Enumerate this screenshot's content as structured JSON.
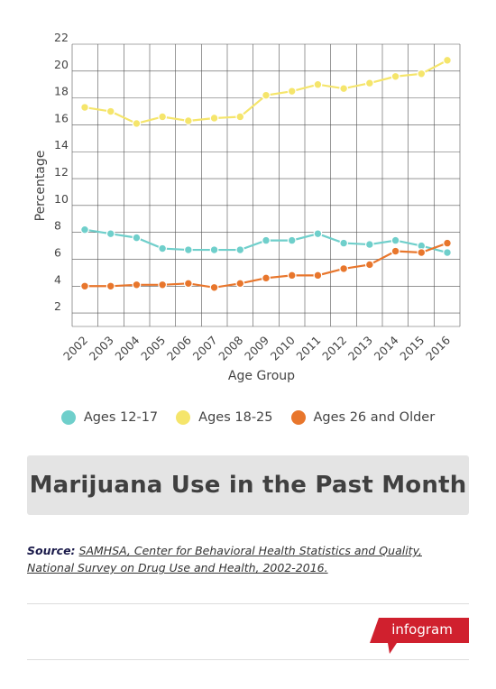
{
  "chart_data": {
    "type": "line",
    "title": "Marijuana Use in the Past Month",
    "xlabel": "Age Group",
    "ylabel": "Percentage",
    "categories": [
      "2002",
      "2003",
      "2004",
      "2005",
      "2006",
      "2007",
      "2008",
      "2009",
      "2010",
      "2011",
      "2012",
      "2013",
      "2014",
      "2015",
      "2016"
    ],
    "yticks": [
      "2",
      "4",
      "6",
      "8",
      "10",
      "12",
      "14",
      "16",
      "18",
      "20",
      "22"
    ],
    "ylim": [
      1,
      22
    ],
    "grid": true,
    "legend_position": "bottom",
    "series": [
      {
        "name": "Ages 12-17",
        "color": "#6fcfcb",
        "values": [
          8.2,
          7.9,
          7.6,
          6.8,
          6.7,
          6.7,
          6.7,
          7.4,
          7.4,
          7.9,
          7.2,
          7.1,
          7.4,
          7.0,
          6.5
        ]
      },
      {
        "name": "Ages 18-25",
        "color": "#f5e56b",
        "values": [
          17.3,
          17.0,
          16.1,
          16.6,
          16.3,
          16.5,
          16.6,
          18.2,
          18.5,
          19.0,
          18.7,
          19.1,
          19.6,
          19.8,
          20.8
        ]
      },
      {
        "name": "Ages 26 and Older",
        "color": "#e8762c",
        "values": [
          4.0,
          4.0,
          4.1,
          4.1,
          4.2,
          3.9,
          4.2,
          4.6,
          4.8,
          4.8,
          5.3,
          5.6,
          6.6,
          6.5,
          7.2
        ]
      }
    ]
  },
  "source": {
    "label": "Source:",
    "text": "SAMHSA, Center for Behavioral Health Statistics and Quality, National Survey on Drug Use and Health, 2002-2016."
  },
  "brand": {
    "name": "infogram",
    "color": "#d0202e"
  }
}
